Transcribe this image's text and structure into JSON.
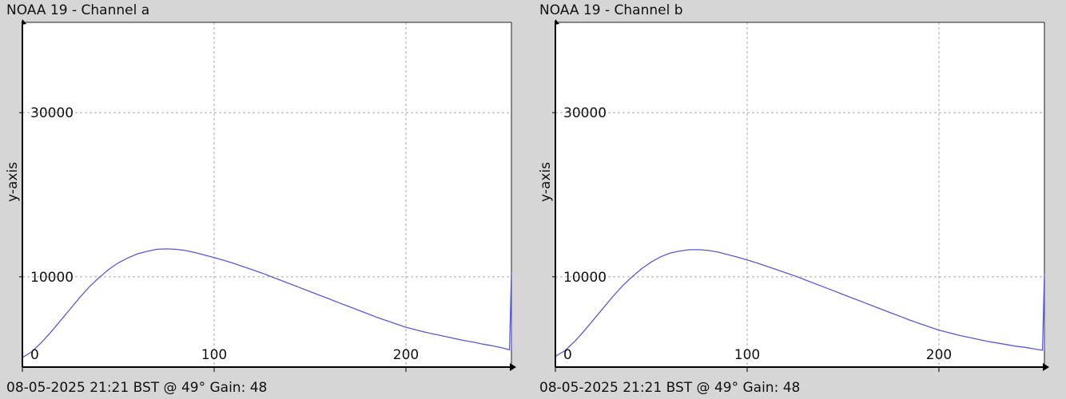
{
  "chart_data": [
    {
      "type": "line",
      "title": "NOAA 19 - Channel a",
      "footer": "08-05-2025 21:21 BST @ 49° Gain: 48",
      "ylabel": "y-axis",
      "xlabel": "",
      "xlim": [
        0,
        255
      ],
      "ylim": [
        -1000,
        41000
      ],
      "x_ticks": [
        0,
        100,
        200
      ],
      "y_ticks": [
        0,
        10000,
        30000
      ],
      "grid": true,
      "series": [
        {
          "color": "#5a5acd",
          "x": [
            0,
            5,
            10,
            15,
            20,
            25,
            30,
            35,
            40,
            45,
            50,
            55,
            60,
            65,
            70,
            75,
            80,
            85,
            90,
            95,
            100,
            105,
            110,
            115,
            120,
            125,
            130,
            135,
            140,
            145,
            150,
            155,
            160,
            165,
            170,
            175,
            180,
            185,
            190,
            195,
            200,
            205,
            210,
            215,
            220,
            225,
            230,
            235,
            240,
            245,
            250,
            254,
            255,
            255
          ],
          "values": [
            150,
            900,
            2000,
            3300,
            4700,
            6100,
            7500,
            8800,
            9900,
            10900,
            11700,
            12300,
            12800,
            13100,
            13350,
            13400,
            13350,
            13200,
            12950,
            12650,
            12350,
            12000,
            11650,
            11250,
            10850,
            10450,
            10000,
            9550,
            9100,
            8650,
            8200,
            7750,
            7300,
            6850,
            6400,
            5950,
            5500,
            5050,
            4650,
            4250,
            3850,
            3550,
            3250,
            3000,
            2750,
            2500,
            2250,
            2050,
            1800,
            1600,
            1350,
            1100,
            10600,
            1100
          ]
        }
      ]
    },
    {
      "type": "line",
      "title": "NOAA 19 - Channel b",
      "footer": "08-05-2025 21:21 BST @ 49° Gain: 48",
      "ylabel": "y-axis",
      "xlabel": "",
      "xlim": [
        0,
        255
      ],
      "ylim": [
        -1000,
        41000
      ],
      "x_ticks": [
        0,
        100,
        200
      ],
      "y_ticks": [
        0,
        10000,
        30000
      ],
      "grid": true,
      "series": [
        {
          "color": "#5a5acd",
          "x": [
            0,
            5,
            10,
            15,
            20,
            25,
            30,
            35,
            40,
            45,
            50,
            55,
            60,
            65,
            70,
            75,
            80,
            85,
            90,
            95,
            100,
            105,
            110,
            115,
            120,
            125,
            130,
            135,
            140,
            145,
            150,
            155,
            160,
            165,
            170,
            175,
            180,
            185,
            190,
            195,
            200,
            205,
            210,
            215,
            220,
            225,
            230,
            235,
            240,
            245,
            250,
            254,
            255,
            255
          ],
          "values": [
            300,
            1000,
            2100,
            3400,
            4800,
            6200,
            7600,
            8900,
            10000,
            11000,
            11800,
            12450,
            12900,
            13150,
            13300,
            13300,
            13200,
            13000,
            12700,
            12400,
            12050,
            11700,
            11300,
            10900,
            10500,
            10100,
            9650,
            9200,
            8750,
            8300,
            7850,
            7400,
            6950,
            6500,
            6050,
            5600,
            5150,
            4700,
            4300,
            3900,
            3500,
            3200,
            2900,
            2650,
            2400,
            2150,
            1950,
            1750,
            1550,
            1400,
            1200,
            1050,
            10400,
            1050
          ]
        }
      ]
    }
  ]
}
